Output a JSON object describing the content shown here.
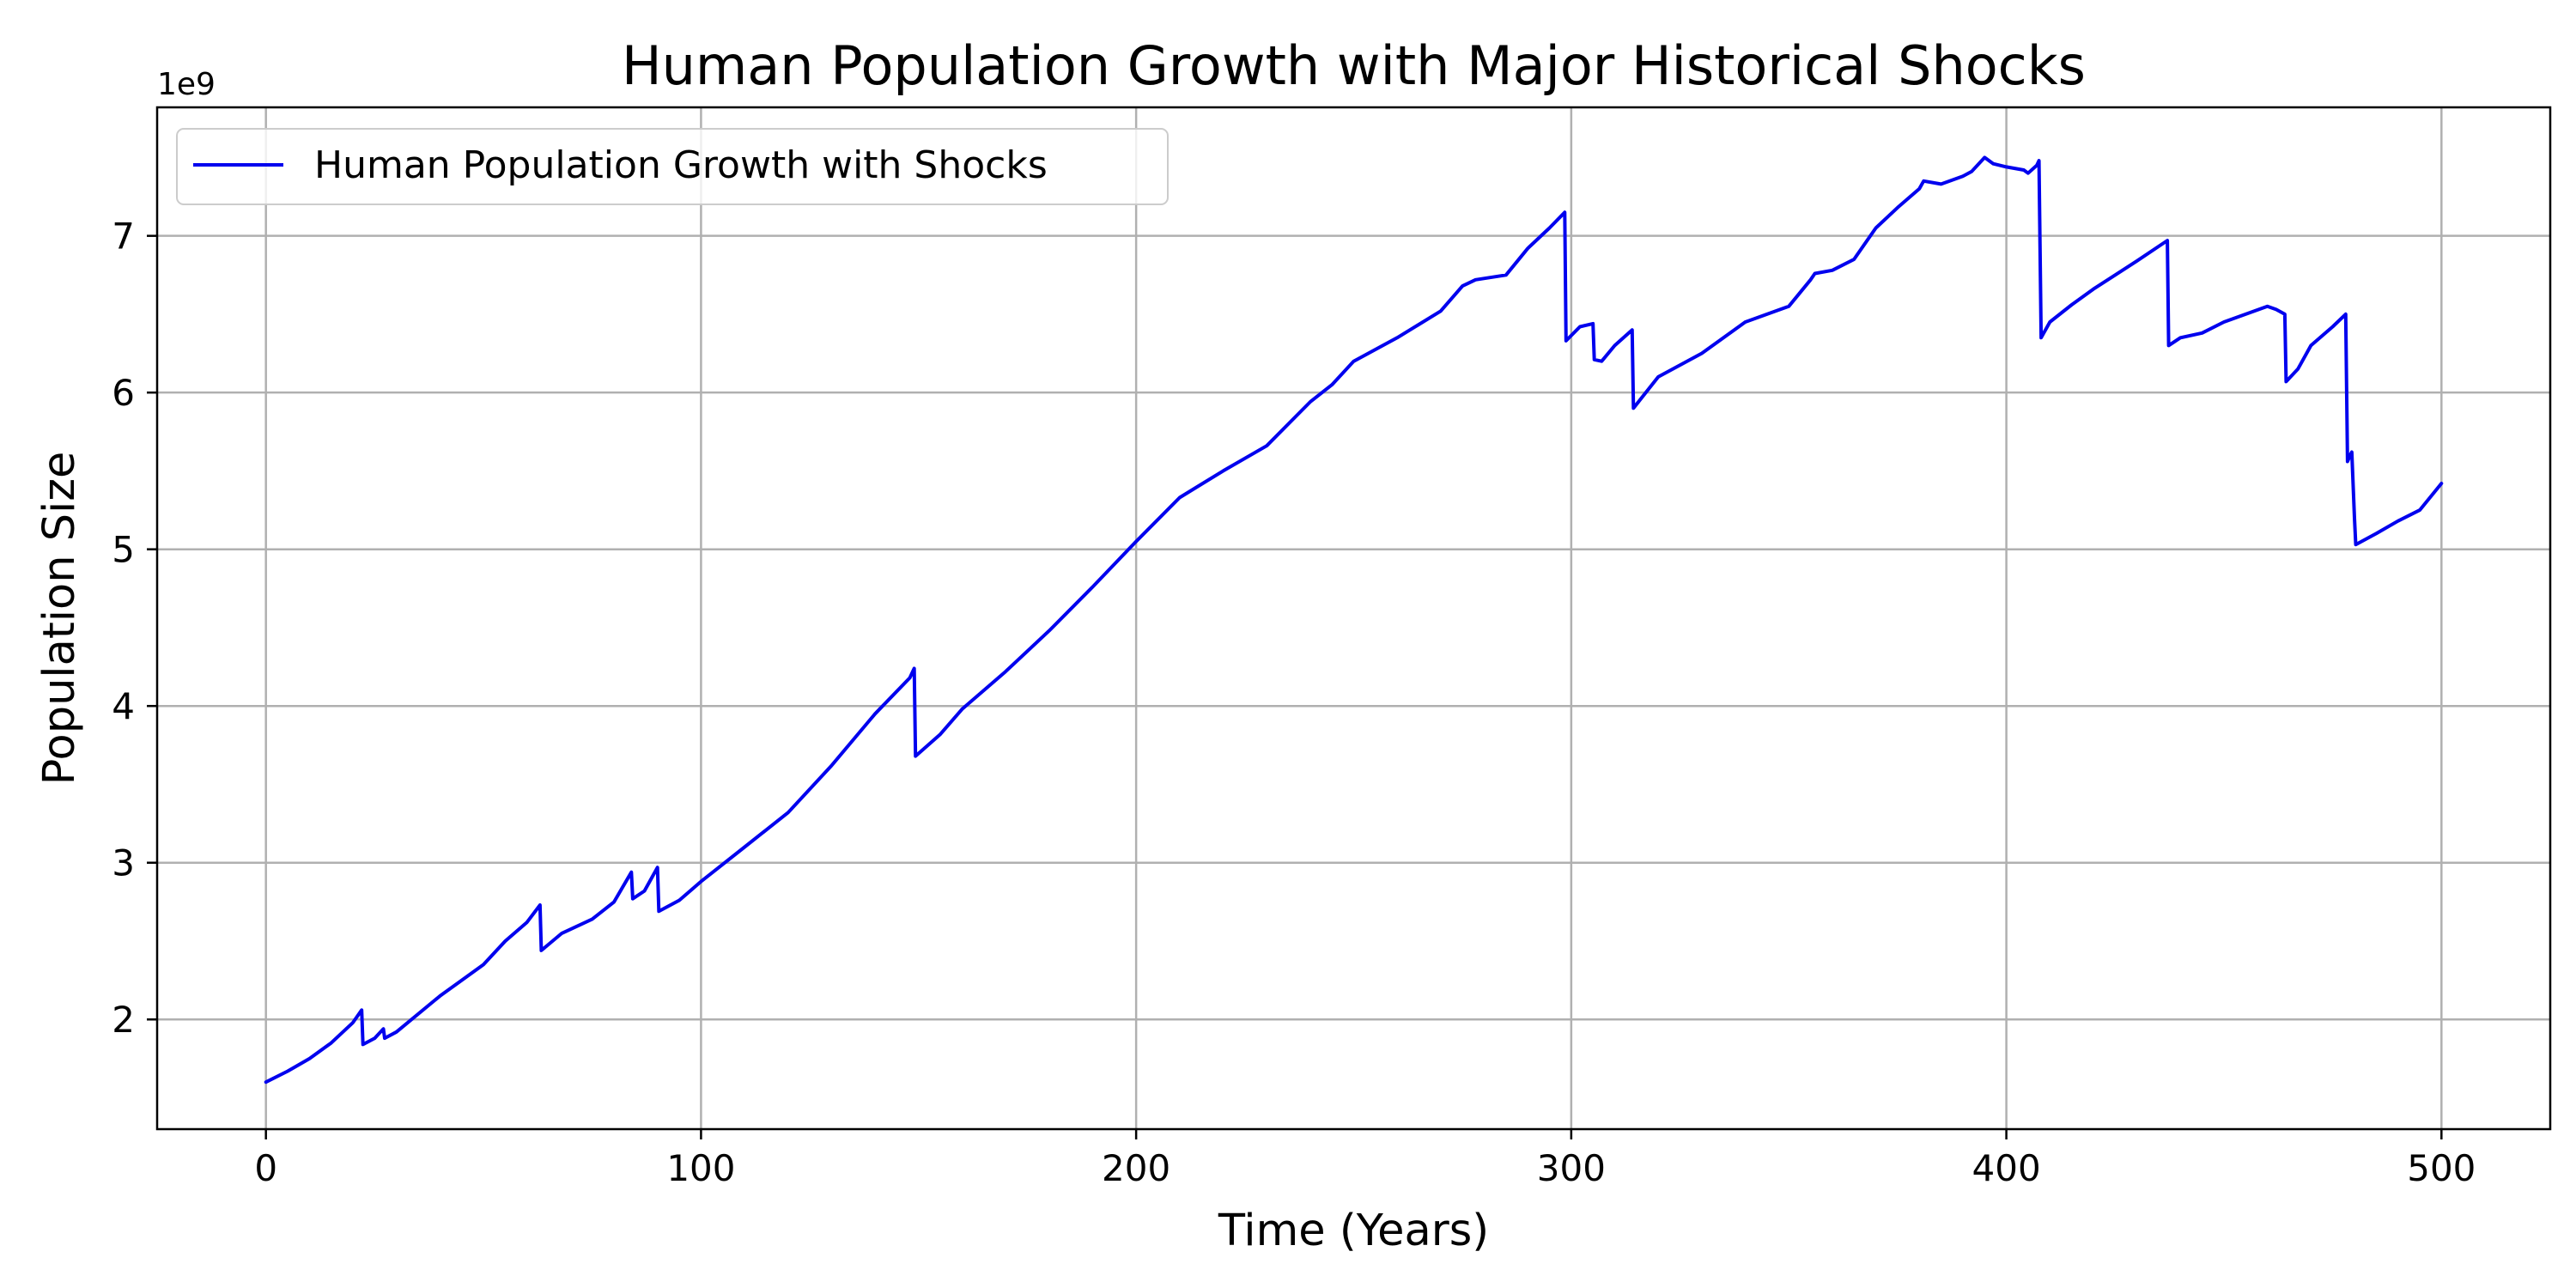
{
  "chart_data": {
    "type": "line",
    "title": "Human Population Growth with Major Historical Shocks",
    "xlabel": "Time (Years)",
    "ylabel": "Population Size",
    "y_offset_label": "1e9",
    "xlim": [
      -25,
      525
    ],
    "ylim": [
      1.3,
      7.82
    ],
    "x_ticks": [
      0,
      100,
      200,
      300,
      400,
      500
    ],
    "x_tick_labels": [
      "0",
      "100",
      "200",
      "300",
      "400",
      "500"
    ],
    "y_ticks": [
      2,
      3,
      4,
      5,
      6,
      7
    ],
    "y_tick_labels": [
      "2",
      "3",
      "4",
      "5",
      "6",
      "7"
    ],
    "grid": true,
    "legend_position": "upper-left",
    "colors": {
      "series": "#0000ee",
      "grid": "#b0b0b0",
      "axes": "#000000"
    },
    "series": [
      {
        "name": "Human Population Growth with Shocks",
        "x": [
          0,
          5,
          10,
          15,
          20,
          22,
          22.3,
          25,
          27,
          27.3,
          30,
          40,
          50,
          55,
          60,
          63,
          63.3,
          68,
          75,
          80,
          84,
          84.3,
          87,
          90,
          90.3,
          95,
          100,
          110,
          120,
          130,
          140,
          148,
          149,
          149.3,
          155,
          160,
          170,
          180,
          190,
          200,
          210,
          220,
          230,
          240,
          245,
          250,
          260,
          270,
          275,
          278,
          285,
          290,
          295,
          298.5,
          298.8,
          302,
          305,
          305.3,
          307,
          310,
          314,
          314.3,
          316,
          320,
          330,
          340,
          345,
          350,
          355,
          356,
          360,
          365,
          370,
          375,
          380,
          381,
          385,
          390,
          392,
          395,
          397,
          400,
          404,
          405,
          407,
          407.5,
          408,
          410,
          415,
          420,
          425,
          430,
          437,
          437.3,
          440,
          445,
          450,
          455,
          460,
          462,
          464,
          464.3,
          467,
          470,
          475,
          478,
          478.4,
          479,
          479.4,
          480,
          480.3,
          485,
          490,
          495,
          500
        ],
        "y": [
          1.6,
          1.67,
          1.75,
          1.85,
          1.98,
          2.06,
          1.84,
          1.88,
          1.94,
          1.88,
          1.92,
          2.15,
          2.35,
          2.5,
          2.62,
          2.73,
          2.44,
          2.55,
          2.64,
          2.75,
          2.94,
          2.77,
          2.82,
          2.97,
          2.69,
          2.76,
          2.88,
          3.1,
          3.32,
          3.62,
          3.95,
          4.18,
          4.24,
          3.68,
          3.82,
          3.98,
          4.22,
          4.48,
          4.76,
          5.05,
          5.33,
          5.5,
          5.66,
          5.94,
          6.05,
          6.2,
          6.35,
          6.52,
          6.68,
          6.72,
          6.75,
          6.92,
          7.05,
          7.15,
          6.33,
          6.42,
          6.44,
          6.21,
          6.2,
          6.3,
          6.4,
          5.9,
          5.96,
          6.1,
          6.25,
          6.45,
          6.5,
          6.55,
          6.72,
          6.76,
          6.78,
          6.85,
          7.05,
          7.18,
          7.3,
          7.35,
          7.33,
          7.38,
          7.41,
          7.5,
          7.46,
          7.44,
          7.42,
          7.4,
          7.45,
          7.48,
          6.35,
          6.45,
          6.56,
          6.66,
          6.75,
          6.84,
          6.97,
          6.3,
          6.35,
          6.38,
          6.45,
          6.5,
          6.55,
          6.53,
          6.5,
          6.07,
          6.15,
          6.3,
          6.42,
          6.5,
          5.56,
          5.6,
          5.62,
          5.2,
          5.03,
          5.1,
          5.18,
          5.25,
          5.42
        ]
      }
    ]
  }
}
